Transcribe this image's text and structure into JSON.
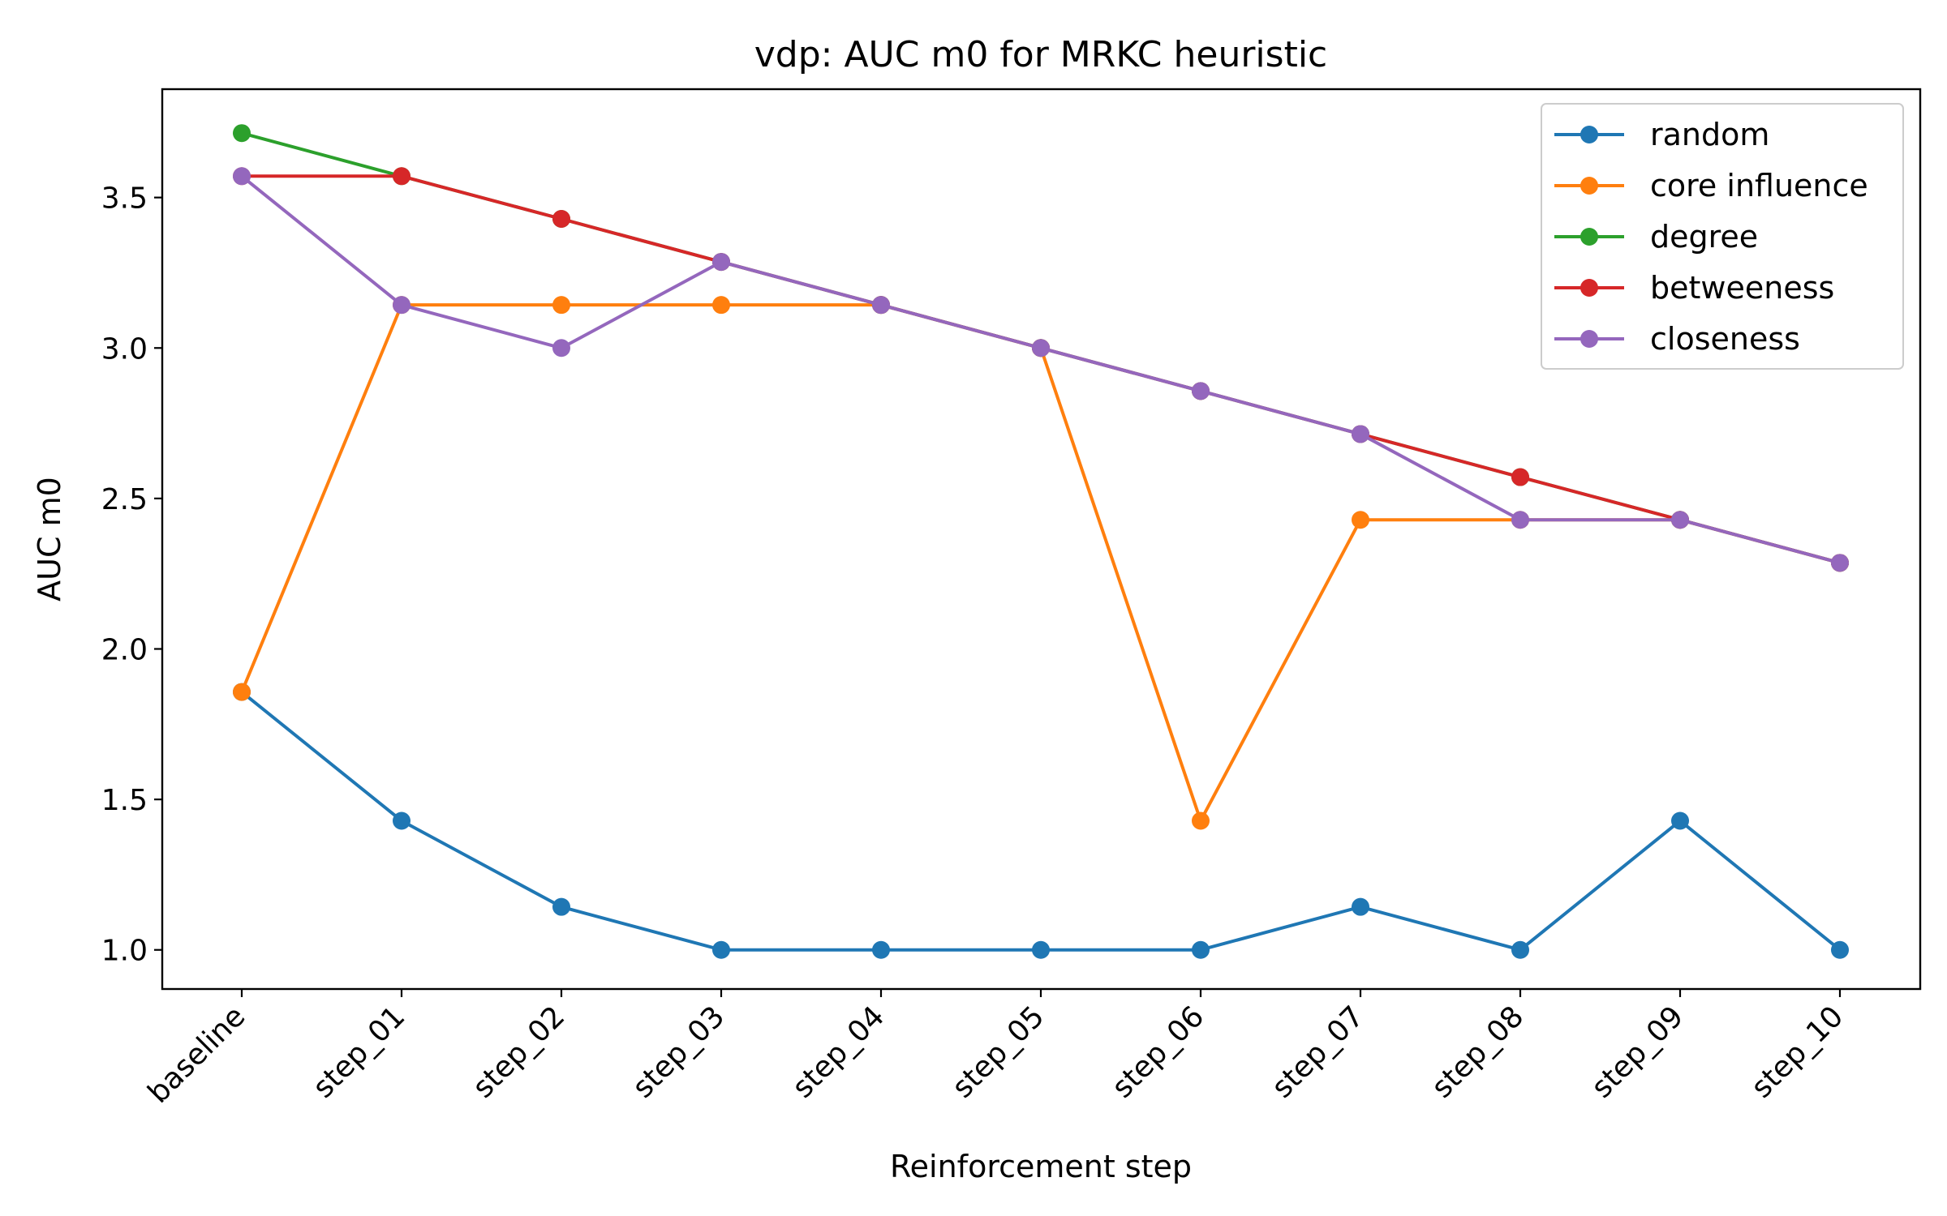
{
  "chart_data": {
    "type": "line",
    "title": "vdp: AUC m0 for MRKC heuristic",
    "xlabel": "Reinforcement step",
    "ylabel": "AUC m0",
    "categories": [
      "baseline",
      "step_01",
      "step_02",
      "step_03",
      "step_04",
      "step_05",
      "step_06",
      "step_07",
      "step_08",
      "step_09",
      "step_10"
    ],
    "ylim": [
      0.87,
      3.86
    ],
    "yticks": [
      1.0,
      1.5,
      2.0,
      2.5,
      3.0,
      3.5
    ],
    "ytick_labels": [
      "1.0",
      "1.5",
      "2.0",
      "2.5",
      "3.0",
      "3.5"
    ],
    "legend_position": "top-right",
    "grid": false,
    "series": [
      {
        "name": "random",
        "color": "#1f77b4",
        "values": [
          1.857,
          1.429,
          1.143,
          1.0,
          1.0,
          1.0,
          1.0,
          1.143,
          1.0,
          1.429,
          1.0
        ]
      },
      {
        "name": "core influence",
        "color": "#ff7f0e",
        "values": [
          1.857,
          3.143,
          3.143,
          3.143,
          3.143,
          3.0,
          1.429,
          2.429,
          2.429,
          2.429,
          2.286
        ]
      },
      {
        "name": "degree",
        "color": "#2ca02c",
        "values": [
          3.714,
          3.571,
          3.429,
          3.286,
          3.143,
          3.0,
          2.857,
          2.714,
          2.571,
          2.429,
          2.286
        ]
      },
      {
        "name": "betweeness",
        "color": "#d62728",
        "values": [
          3.571,
          3.571,
          3.429,
          3.286,
          3.143,
          3.0,
          2.857,
          2.714,
          2.571,
          2.429,
          2.286
        ]
      },
      {
        "name": "closeness",
        "color": "#9467bd",
        "values": [
          3.571,
          3.143,
          3.0,
          3.286,
          3.143,
          3.0,
          2.857,
          2.714,
          2.429,
          2.429,
          2.286
        ]
      }
    ]
  }
}
